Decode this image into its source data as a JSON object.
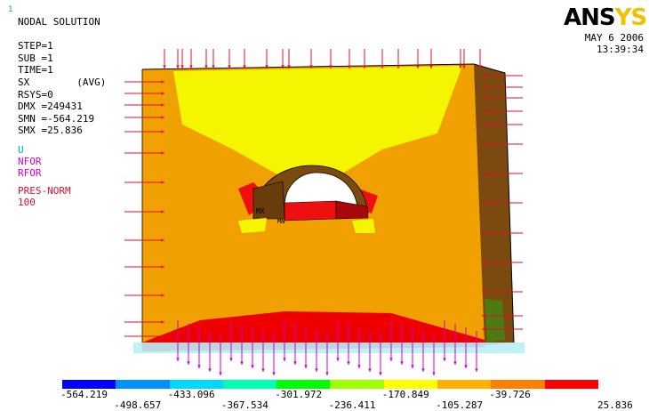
{
  "header": {
    "window_number": "1",
    "solution_type": "NODAL SOLUTION",
    "step": "STEP=1",
    "sub": "SUB =1",
    "time": "TIME=1",
    "result": "SX        (AVG)",
    "rsys": "RSYS=0",
    "dmx": "DMX =249431",
    "smn": "SMN =-564.219",
    "smx": "SMX =25.836"
  },
  "symbol_legend": {
    "u": "U",
    "nfor": "NFOR",
    "rfor": "RFOR",
    "pres": "PRES-NORM",
    "pres_value": "100"
  },
  "colors": {
    "u": "#00b4c8",
    "nfor": "#cc00cc",
    "rfor": "#cc00cc",
    "pres": "#e0102a",
    "yellow_zone": "#f5f500",
    "orange_zone": "#f0a000",
    "red_zone": "#ee0000",
    "side_face": "#7a4a0e"
  },
  "logo": {
    "main": "ANS",
    "tail": "YS"
  },
  "timestamp": {
    "date": "MAY  6 2006",
    "time": "13:39:34"
  },
  "model_labels": {
    "mx": "MX",
    "mn": "MN"
  },
  "contour_legend": {
    "colors": [
      "#0000ff",
      "#0090ff",
      "#00d8ff",
      "#00ffb0",
      "#00ff00",
      "#a0ff00",
      "#ffff00",
      "#ffb000",
      "#ff8000",
      "#ff0000"
    ],
    "top_labels": [
      "-564.219",
      "-433.096",
      "-301.972",
      "-170.849",
      "-39.726"
    ],
    "bottom_labels": [
      "-498.657",
      "-367.534",
      "-236.411",
      "-105.287",
      "25.836"
    ]
  }
}
